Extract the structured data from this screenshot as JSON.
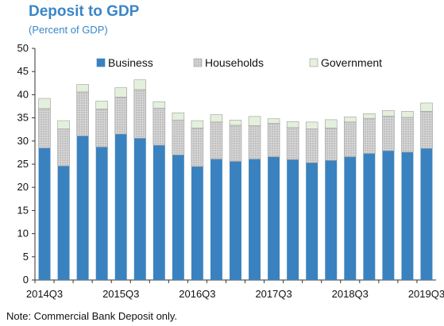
{
  "title": "Deposit to GDP",
  "subtitle": "(Percent of GDP)",
  "note": "Note: Commercial Bank Deposit only.",
  "colors": {
    "business": "#3a82bf",
    "households": "#c8c8c8",
    "government": "#e6f2df"
  },
  "chart_data": {
    "type": "bar",
    "stacked": true,
    "categories": [
      "2014Q3",
      "2014Q4",
      "2015Q1",
      "2015Q2",
      "2015Q3",
      "2015Q4",
      "2016Q1",
      "2016Q2",
      "2016Q3",
      "2016Q4",
      "2017Q1",
      "2017Q2",
      "2017Q3",
      "2017Q4",
      "2018Q1",
      "2018Q2",
      "2018Q3",
      "2018Q4",
      "2019Q1",
      "2019Q2",
      "2019Q3"
    ],
    "x_tick_labels": [
      "2014Q3",
      "2015Q3",
      "2016Q3",
      "2017Q3",
      "2018Q3",
      "2019Q3"
    ],
    "series": [
      {
        "name": "Business",
        "values": [
          28.5,
          24.6,
          31.1,
          28.7,
          31.5,
          30.6,
          29.1,
          27.0,
          24.5,
          26.1,
          25.6,
          26.1,
          26.6,
          26.0,
          25.3,
          25.8,
          26.6,
          27.3,
          27.9,
          27.6,
          28.4
        ]
      },
      {
        "name": "Households",
        "values": [
          8.5,
          8.0,
          9.5,
          8.2,
          8.0,
          10.5,
          8.0,
          7.5,
          8.3,
          8.0,
          7.8,
          7.2,
          7.2,
          6.9,
          7.3,
          7.0,
          7.5,
          7.6,
          7.5,
          7.5,
          8.0
        ]
      },
      {
        "name": "Government",
        "values": [
          2.2,
          1.8,
          1.6,
          1.7,
          2.0,
          2.1,
          1.4,
          1.6,
          1.6,
          1.6,
          1.1,
          2.0,
          1.0,
          1.3,
          1.5,
          1.8,
          1.1,
          1.0,
          1.2,
          1.3,
          1.8
        ]
      }
    ],
    "ylim": [
      0,
      50
    ],
    "yticks": [
      0,
      5,
      10,
      15,
      20,
      25,
      30,
      35,
      40,
      45,
      50
    ],
    "legend": "top",
    "grid": false
  }
}
